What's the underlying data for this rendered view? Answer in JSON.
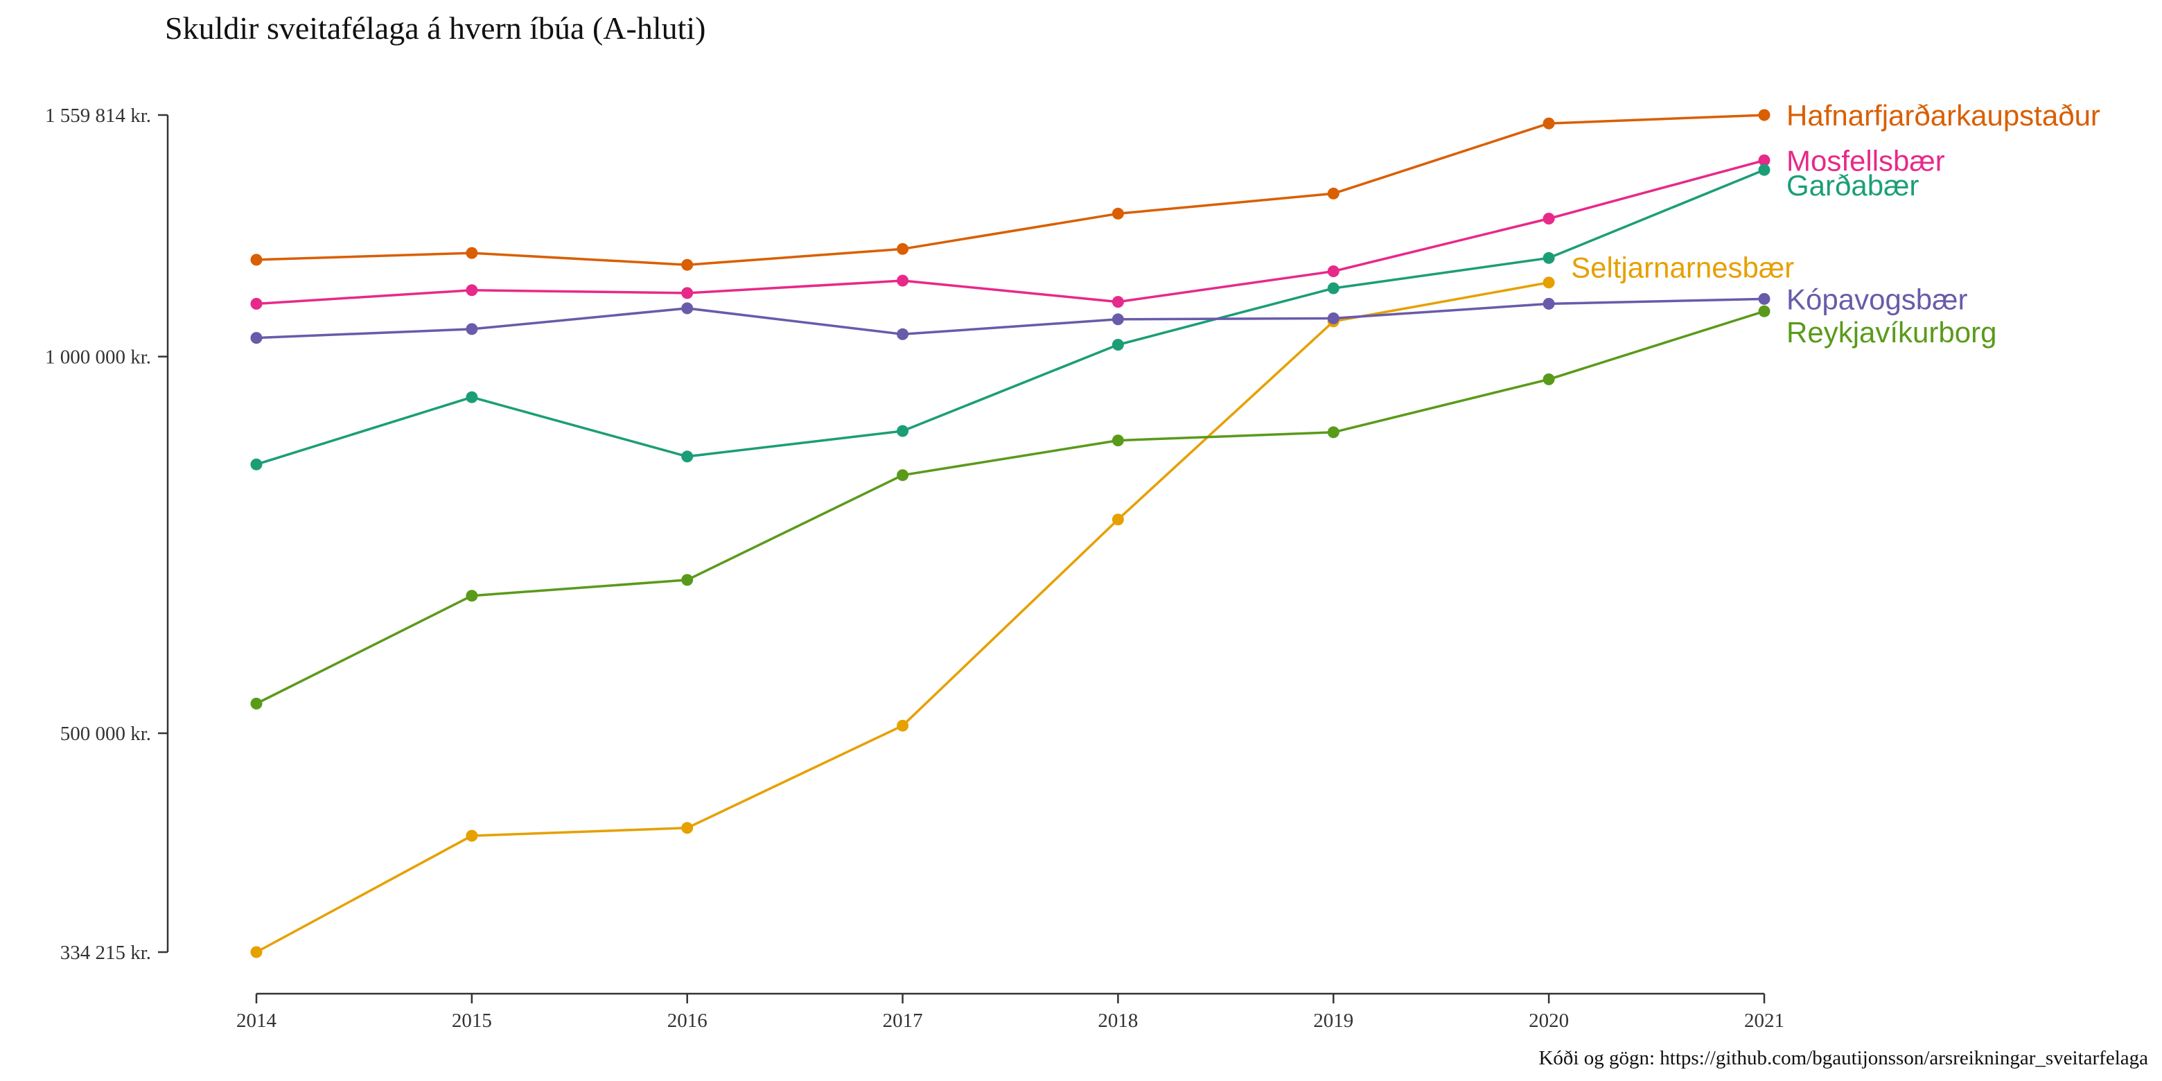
{
  "chart_data": {
    "type": "line",
    "title": "Skuldir sveitafélaga á hvern íbúa (A-hluti)",
    "caption": "Kóði og gögn: https://github.com/bgautijonsson/arsreikningar_sveitarfelaga",
    "x_tick_labels": [
      "2014",
      "2015",
      "2016",
      "2017",
      "2018",
      "2019",
      "2020",
      "2021"
    ],
    "y_scale": "log",
    "ylim": [
      334215,
      1559814
    ],
    "y_ticks": [
      {
        "value": 334215,
        "label": "334 215 kr."
      },
      {
        "value": 500000,
        "label": "500 000 kr."
      },
      {
        "value": 1000000,
        "label": "1 000 000 kr."
      },
      {
        "value": 1559814,
        "label": "1 559 814 kr."
      }
    ],
    "grid": false,
    "legend": "direct labels at line ends",
    "series": [
      {
        "name": "Hafnarfjarðarkaupstaður",
        "color": "#d95f02",
        "x": [
          2014,
          2015,
          2016,
          2017,
          2018,
          2019,
          2020,
          2021
        ],
        "values": [
          1195000,
          1210000,
          1184000,
          1219000,
          1301000,
          1350000,
          1536000,
          1559814
        ]
      },
      {
        "name": "Mosfellsbær",
        "color": "#e7298a",
        "x": [
          2014,
          2015,
          2016,
          2017,
          2018,
          2019,
          2020,
          2021
        ],
        "values": [
          1102000,
          1130000,
          1124000,
          1150000,
          1106000,
          1170000,
          1289000,
          1435000
        ]
      },
      {
        "name": "Garðabær",
        "color": "#1b9e77",
        "x": [
          2014,
          2015,
          2016,
          2017,
          2018,
          2019,
          2020,
          2021
        ],
        "values": [
          820000,
          928000,
          832000,
          872000,
          1022000,
          1134000,
          1199000,
          1410000
        ]
      },
      {
        "name": "Seltjarnarnesbær",
        "color": "#e6a000",
        "x": [
          2014,
          2015,
          2016,
          2017,
          2018,
          2019,
          2020
        ],
        "values": [
          334215,
          414000,
          420000,
          507000,
          741000,
          1067000,
          1146000
        ]
      },
      {
        "name": "Kópavogsbær",
        "color": "#6a5aaa",
        "x": [
          2014,
          2015,
          2016,
          2017,
          2018,
          2019,
          2020,
          2021
        ],
        "values": [
          1035000,
          1052000,
          1093000,
          1042000,
          1071000,
          1073000,
          1102000,
          1112000
        ]
      },
      {
        "name": "Reykjavíkurborg",
        "color": "#5a9a1a",
        "x": [
          2014,
          2015,
          2016,
          2017,
          2018,
          2019,
          2020,
          2021
        ],
        "values": [
          528000,
          644000,
          663000,
          804000,
          857000,
          870000,
          959000,
          1087000
        ]
      }
    ]
  }
}
